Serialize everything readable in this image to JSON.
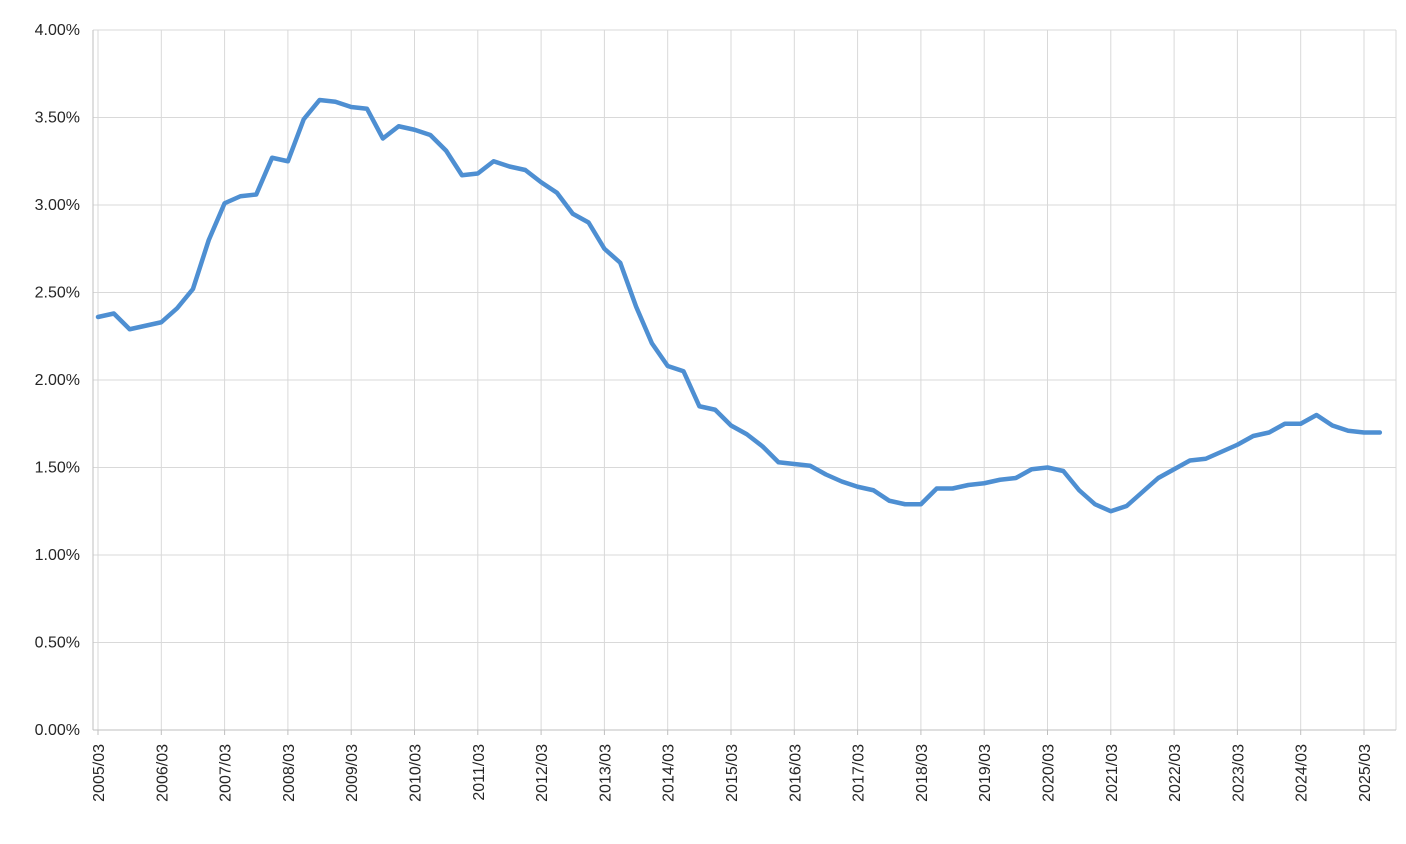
{
  "chart_data": {
    "type": "line",
    "title": "",
    "xlabel": "",
    "ylabel": "",
    "legend_position": "none",
    "grid": true,
    "ylim": [
      0,
      4.0
    ],
    "y_tick_step": 0.5,
    "y_tick_labels": [
      "0.00%",
      "0.50%",
      "1.00%",
      "1.50%",
      "2.00%",
      "2.50%",
      "3.00%",
      "3.50%",
      "4.00%"
    ],
    "x_tick_labels": [
      "2005/03",
      "2006/03",
      "2007/03",
      "2008/03",
      "2009/03",
      "2010/03",
      "2011/03",
      "2012/03",
      "2013/03",
      "2014/03",
      "2015/03",
      "2016/03",
      "2017/03",
      "2018/03",
      "2019/03",
      "2020/03",
      "2021/03",
      "2022/03",
      "2023/03",
      "2024/03",
      "2025/03"
    ],
    "x": [
      "2005/03",
      "2005/06",
      "2005/09",
      "2005/12",
      "2006/03",
      "2006/06",
      "2006/09",
      "2006/12",
      "2007/03",
      "2007/06",
      "2007/09",
      "2007/12",
      "2008/03",
      "2008/06",
      "2008/09",
      "2008/12",
      "2009/03",
      "2009/06",
      "2009/09",
      "2009/12",
      "2010/03",
      "2010/06",
      "2010/09",
      "2010/12",
      "2011/03",
      "2011/06",
      "2011/09",
      "2011/12",
      "2012/03",
      "2012/06",
      "2012/09",
      "2012/12",
      "2013/03",
      "2013/06",
      "2013/09",
      "2013/12",
      "2014/03",
      "2014/06",
      "2014/09",
      "2014/12",
      "2015/03",
      "2015/06",
      "2015/09",
      "2015/12",
      "2016/03",
      "2016/06",
      "2016/09",
      "2016/12",
      "2017/03",
      "2017/06",
      "2017/09",
      "2017/12",
      "2018/03",
      "2018/06",
      "2018/09",
      "2018/12",
      "2019/03",
      "2019/06",
      "2019/09",
      "2019/12",
      "2020/03",
      "2020/06",
      "2020/09",
      "2020/12",
      "2021/03",
      "2021/06",
      "2021/09",
      "2021/12",
      "2022/03",
      "2022/06",
      "2022/09",
      "2022/12",
      "2023/03",
      "2023/06",
      "2023/09",
      "2023/12",
      "2024/03",
      "2024/06",
      "2024/09",
      "2024/12",
      "2025/03",
      "2025/06"
    ],
    "values": [
      2.36,
      2.38,
      2.29,
      2.31,
      2.33,
      2.41,
      2.52,
      2.8,
      3.01,
      3.05,
      3.06,
      3.27,
      3.25,
      3.49,
      3.6,
      3.59,
      3.56,
      3.55,
      3.38,
      3.45,
      3.43,
      3.4,
      3.31,
      3.17,
      3.18,
      3.25,
      3.22,
      3.2,
      3.13,
      3.07,
      2.95,
      2.9,
      2.75,
      2.67,
      2.42,
      2.21,
      2.08,
      2.05,
      1.85,
      1.83,
      1.74,
      1.69,
      1.62,
      1.53,
      1.52,
      1.51,
      1.46,
      1.42,
      1.39,
      1.37,
      1.31,
      1.29,
      1.29,
      1.38,
      1.38,
      1.4,
      1.41,
      1.43,
      1.44,
      1.49,
      1.5,
      1.48,
      1.37,
      1.29,
      1.25,
      1.28,
      1.36,
      1.44,
      1.49,
      1.54,
      1.55,
      1.59,
      1.63,
      1.68,
      1.7,
      1.75,
      1.75,
      1.8,
      1.74,
      1.71,
      1.7,
      1.7
    ],
    "line_color": "#4E8FD2",
    "grid_color": "#D9D9D9",
    "axis_color": "#BFBFBF",
    "label_color": "#262626"
  }
}
